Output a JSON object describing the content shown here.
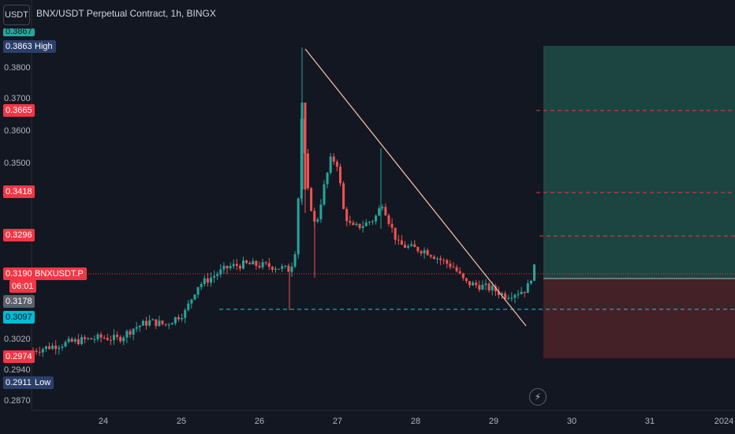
{
  "header": {
    "currency_button": "USDT",
    "title": "BNX/USDT Perpetual Contract, 1h, BINGX"
  },
  "price_axis": {
    "tick_labels": [
      "0.3800",
      "0.3700",
      "0.3600",
      "0.3500",
      "0.3020",
      "0.2940",
      "0.2870"
    ],
    "partial_top_label": "0.3867"
  },
  "price_tags": {
    "high": {
      "value": "0.3863",
      "label": "High"
    },
    "level_1": "0.3665",
    "level_2": "0.3418",
    "level_3": "0.3296",
    "current": {
      "value": "0.3190",
      "countdown": "06:01",
      "symbol": "BNXUSDT.P"
    },
    "level_4": "0.3178",
    "level_5": "0.3097",
    "level_6": "0.2974",
    "low": {
      "value": "0.2911",
      "label": "Low"
    }
  },
  "time_axis": {
    "labels": [
      "24",
      "25",
      "26",
      "27",
      "28",
      "29",
      "30",
      "31",
      "2024"
    ]
  },
  "colors": {
    "background": "#131722",
    "up": "#26a69a",
    "down": "#ef5350",
    "high_tag": "#2a3f6a",
    "trendline": "#f2b8a6",
    "dashed_cyan": "#26c6da",
    "long_zone": "#1e4d46",
    "short_zone": "#4a2128"
  },
  "icons": {
    "replay": "lightning-icon"
  }
}
